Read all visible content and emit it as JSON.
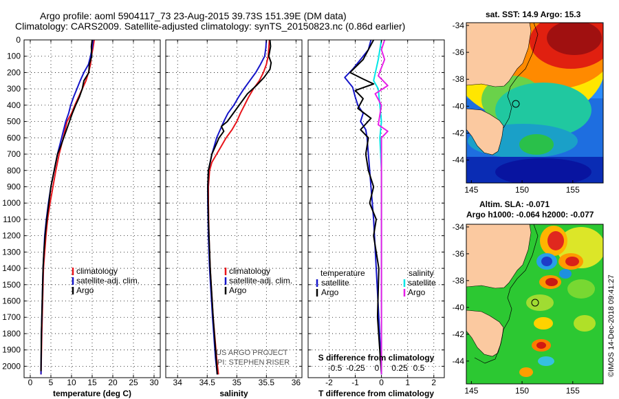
{
  "title": {
    "line1": "Argo profile: aoml 5904117_73 23-Aug-2015 39.73S 151.39E (DM data)",
    "line2": "Climatology: CARS2009. Satellite-adjusted climatology: synTS_20150823.nc (0.86d earlier)"
  },
  "credits": {
    "line1": "US ARGO PROJECT",
    "line2": "PI: STEPHEN RISER"
  },
  "stamp": "©IMOS 14-Dec-2018 09:41:27",
  "colors": {
    "climatology": "#e8141a",
    "satellite": "#1414c8",
    "argo": "#000000",
    "s_satellite": "#00e6e6",
    "s_argo": "#e61ee6"
  },
  "chart_data": [
    {
      "type": "line",
      "xlabel": "temperature (deg C)",
      "xlim": [
        -1.5,
        31.5
      ],
      "xticks": [
        0,
        5,
        10,
        15,
        20,
        25,
        30
      ],
      "ylim": [
        2070,
        0
      ],
      "yticks": [
        0,
        100,
        200,
        300,
        400,
        500,
        600,
        700,
        800,
        900,
        1000,
        1100,
        1200,
        1300,
        1400,
        1500,
        1600,
        1700,
        1800,
        1900,
        2000
      ],
      "legend": [
        "climatology",
        "satellite-adj. clim.",
        "Argo"
      ],
      "series": [
        {
          "name": "climatology",
          "color": "#e8141a",
          "x": [
            15.5,
            15.2,
            14.8,
            14.6,
            14.1,
            13.5,
            12.6,
            11.7,
            10.8,
            10.0,
            8.9,
            8.0,
            7.0,
            6.2,
            5.5,
            4.8,
            4.2,
            3.8,
            3.5,
            3.2,
            3.0,
            2.8,
            2.6
          ],
          "y": [
            0,
            50,
            100,
            150,
            200,
            250,
            300,
            350,
            400,
            450,
            500,
            600,
            700,
            800,
            900,
            1000,
            1100,
            1200,
            1300,
            1400,
            1600,
            1800,
            2050
          ]
        },
        {
          "name": "satellite-adj. clim.",
          "color": "#1414c8",
          "x": [
            15.2,
            15.0,
            14.6,
            14.1,
            13.0,
            12.1,
            11.3,
            10.5,
            9.8,
            9.3,
            8.6,
            7.6,
            6.6,
            5.8,
            5.0,
            4.4,
            3.9,
            3.5,
            3.3,
            3.1,
            2.9,
            2.7,
            2.6
          ],
          "y": [
            0,
            50,
            100,
            150,
            200,
            250,
            300,
            350,
            400,
            450,
            500,
            600,
            700,
            800,
            900,
            1000,
            1100,
            1200,
            1300,
            1400,
            1600,
            1800,
            2050
          ]
        },
        {
          "name": "Argo",
          "color": "#000000",
          "x": [
            15.0,
            14.8,
            14.9,
            14.3,
            14.2,
            13.0,
            12.6,
            11.9,
            11.0,
            10.2,
            9.5,
            8.8,
            8.1,
            7.4,
            6.6,
            5.8,
            5.0,
            4.5,
            4.0,
            3.6,
            3.3,
            3.1,
            2.9,
            2.7,
            2.6
          ],
          "y": [
            0,
            40,
            100,
            150,
            200,
            250,
            300,
            350,
            400,
            450,
            500,
            550,
            600,
            650,
            700,
            800,
            900,
            1000,
            1100,
            1200,
            1300,
            1400,
            1600,
            1800,
            2030
          ]
        }
      ]
    },
    {
      "type": "line",
      "xlabel": "salinity",
      "xlim": [
        33.8,
        36.1
      ],
      "xticks": [
        34,
        34.5,
        35,
        35.5,
        36
      ],
      "ylim": [
        2070,
        0
      ],
      "legend": [
        "climatology",
        "satellite-adj. clim.",
        "Argo"
      ],
      "credits": true,
      "series": [
        {
          "name": "climatology",
          "color": "#e8141a",
          "x": [
            35.55,
            35.54,
            35.53,
            35.5,
            35.45,
            35.38,
            35.28,
            35.2,
            35.13,
            35.06,
            35.0,
            34.92,
            34.82,
            34.74,
            34.66,
            34.58,
            34.54,
            34.52,
            34.52,
            34.53,
            34.55,
            34.6,
            34.66,
            34.69
          ],
          "y": [
            0,
            50,
            100,
            150,
            200,
            250,
            300,
            350,
            400,
            450,
            500,
            550,
            600,
            650,
            700,
            750,
            800,
            900,
            1000,
            1200,
            1400,
            1700,
            1950,
            2050
          ]
        },
        {
          "name": "satellite-adj. clim.",
          "color": "#1414c8",
          "x": [
            35.5,
            35.49,
            35.47,
            35.4,
            35.32,
            35.22,
            35.12,
            35.03,
            34.95,
            34.85,
            34.78,
            34.72,
            34.66,
            34.62,
            34.58,
            34.55,
            34.52,
            34.51,
            34.51,
            34.52,
            34.54,
            34.59,
            34.64,
            34.67
          ],
          "y": [
            0,
            50,
            100,
            150,
            200,
            250,
            300,
            350,
            400,
            450,
            500,
            550,
            600,
            650,
            700,
            750,
            800,
            900,
            1000,
            1200,
            1400,
            1700,
            1950,
            2050
          ]
        },
        {
          "name": "Argo",
          "color": "#000000",
          "x": [
            35.56,
            35.57,
            35.54,
            35.58,
            35.56,
            35.46,
            35.33,
            35.18,
            35.08,
            35.0,
            34.92,
            34.84,
            34.74,
            34.78,
            34.7,
            34.64,
            34.58,
            34.55,
            34.52,
            34.51,
            34.52,
            34.55,
            34.6,
            34.65,
            34.67
          ],
          "y": [
            0,
            40,
            100,
            140,
            180,
            230,
            280,
            330,
            380,
            420,
            460,
            500,
            530,
            560,
            600,
            650,
            700,
            750,
            800,
            900,
            1100,
            1400,
            1700,
            1950,
            2050
          ]
        }
      ]
    },
    {
      "type": "line",
      "xlabel": "T difference from climatology",
      "xlim": [
        -2.8,
        2.4
      ],
      "xticks": [
        -2,
        -1,
        0,
        1,
        2
      ],
      "ylim": [
        2070,
        0
      ],
      "secondary_xlabel": "S difference from climatology",
      "secondary_xticks": [
        "-0.5",
        "-0.25",
        "0",
        "0.25",
        "0.5"
      ],
      "secondary_xlim": [
        -0.7,
        0.6
      ],
      "legend_left": {
        "title": "temperature",
        "items": [
          "satellite",
          "Argo"
        ]
      },
      "legend_right": {
        "title": "salinity",
        "items": [
          "satellite",
          "Argo"
        ]
      },
      "series": [
        {
          "name": "T satellite",
          "color": "#1414c8",
          "x": [
            -0.4,
            -0.5,
            -0.8,
            -1.1,
            -1.4,
            -1.1,
            -1.0,
            -0.9,
            -0.7,
            -0.8,
            -0.6,
            -0.55,
            -0.5,
            -0.45,
            -0.4,
            -0.3,
            -0.2,
            -0.1,
            0.0
          ],
          "y": [
            0,
            60,
            120,
            180,
            230,
            290,
            350,
            400,
            450,
            500,
            550,
            600,
            700,
            800,
            900,
            1100,
            1400,
            1700,
            2050
          ]
        },
        {
          "name": "T Argo",
          "color": "#000000",
          "x": [
            -0.3,
            -0.5,
            -0.7,
            -1.2,
            -0.7,
            -0.3,
            -1.0,
            -0.7,
            -0.9,
            -0.4,
            -0.8,
            -0.5,
            -0.6,
            -0.5,
            -0.3,
            -0.45,
            -0.2,
            -0.3,
            -0.1,
            -0.15,
            0.0
          ],
          "y": [
            0,
            60,
            120,
            200,
            240,
            270,
            310,
            360,
            420,
            480,
            550,
            600,
            700,
            800,
            900,
            1000,
            1100,
            1200,
            1400,
            1700,
            2050
          ]
        },
        {
          "name": "S satellite",
          "color": "#00e6e6",
          "x": [
            0.0,
            -0.05,
            -0.1,
            -0.25,
            -0.1,
            -0.05,
            0.0,
            -0.05,
            0.0,
            0.0,
            0.0,
            0.0,
            0.0
          ],
          "y": [
            0,
            60,
            120,
            250,
            300,
            400,
            500,
            600,
            800,
            1100,
            1400,
            1700,
            2050
          ]
        },
        {
          "name": "S Argo",
          "color": "#e61ee6",
          "x": [
            0.1,
            0.0,
            0.1,
            -0.1,
            0.2,
            -0.2,
            0.0,
            -0.1,
            0.2,
            0.0,
            0.0,
            0.0,
            0.0
          ],
          "y": [
            0,
            60,
            120,
            220,
            280,
            330,
            400,
            520,
            560,
            600,
            900,
            1400,
            2050
          ]
        }
      ]
    }
  ],
  "maps": [
    {
      "title": "sat. SST: 14.9 Argo: 15.3",
      "xlim": [
        144.5,
        158
      ],
      "ylim": [
        -45.7,
        -33.8
      ],
      "xticks": [
        145,
        150,
        155
      ],
      "yticks": [
        -34,
        -36,
        -38,
        -40,
        -42,
        -44
      ],
      "argo_location": [
        151.39,
        -39.73
      ]
    },
    {
      "title1": "Altim. SLA: -0.071",
      "title2": "Argo h1000: -0.064 h2000: -0.077",
      "xlim": [
        144.5,
        158
      ],
      "ylim": [
        -45.7,
        -33.8
      ],
      "xticks": [
        145,
        150,
        155
      ],
      "yticks": [
        -34,
        -36,
        -38,
        -40,
        -42,
        -44
      ],
      "argo_location": [
        151.39,
        -39.73
      ]
    }
  ]
}
